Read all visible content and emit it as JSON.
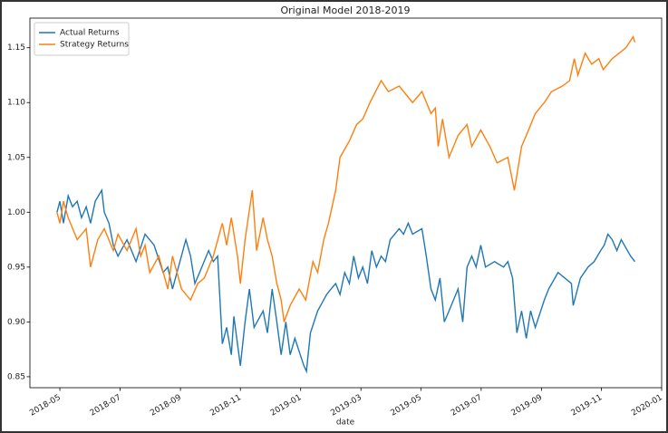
{
  "chart_data": {
    "type": "line",
    "title": "Original Model 2018-2019",
    "x_label": "date",
    "xlim": [
      2018.25,
      2020.0
    ],
    "ylim": [
      0.84,
      1.177
    ],
    "xticks": [
      {
        "value": 2018.333,
        "label": "2018-05"
      },
      {
        "value": 2018.5,
        "label": "2018-07"
      },
      {
        "value": 2018.667,
        "label": "2018-09"
      },
      {
        "value": 2018.833,
        "label": "2018-11"
      },
      {
        "value": 2019.0,
        "label": "2019-01"
      },
      {
        "value": 2019.167,
        "label": "2019-03"
      },
      {
        "value": 2019.333,
        "label": "2019-05"
      },
      {
        "value": 2019.5,
        "label": "2019-07"
      },
      {
        "value": 2019.667,
        "label": "2019-09"
      },
      {
        "value": 2019.833,
        "label": "2019-11"
      },
      {
        "value": 2020.0,
        "label": "2020-01"
      }
    ],
    "yticks": [
      0.85,
      {
        "value": 0.9,
        "label": "0.90"
      },
      0.95,
      {
        "value": 1.0,
        "label": "1.00"
      },
      1.05,
      {
        "value": 1.1,
        "label": "1.10"
      },
      1.15
    ],
    "grid": false,
    "legend": "upper-left",
    "series": [
      {
        "name": "Actual Returns",
        "color": "#1f77b4",
        "x": [
          2018.325,
          2018.333,
          2018.343,
          2018.356,
          2018.368,
          2018.381,
          2018.393,
          2018.406,
          2018.418,
          2018.431,
          2018.449,
          2018.456,
          2018.469,
          2018.481,
          2018.494,
          2018.519,
          2018.544,
          2018.569,
          2018.594,
          2018.619,
          2018.632,
          2018.645,
          2018.682,
          2018.695,
          2018.707,
          2018.72,
          2018.745,
          2018.758,
          2018.77,
          2018.783,
          2018.795,
          2018.808,
          2018.815,
          2018.833,
          2018.846,
          2018.858,
          2018.871,
          2018.896,
          2018.908,
          2018.921,
          2018.934,
          2018.946,
          2018.959,
          2018.971,
          2018.984,
          2019.009,
          2019.016,
          2019.027,
          2019.047,
          2019.072,
          2019.084,
          2019.097,
          2019.109,
          2019.122,
          2019.135,
          2019.147,
          2019.16,
          2019.172,
          2019.185,
          2019.197,
          2019.21,
          2019.223,
          2019.235,
          2019.248,
          2019.273,
          2019.285,
          2019.298,
          2019.31,
          2019.336,
          2019.348,
          2019.361,
          2019.373,
          2019.386,
          2019.398,
          2019.411,
          2019.436,
          2019.449,
          2019.461,
          2019.474,
          2019.486,
          2019.499,
          2019.512,
          2019.537,
          2019.562,
          2019.574,
          2019.587,
          2019.599,
          2019.612,
          2019.625,
          2019.637,
          2019.65,
          2019.675,
          2019.687,
          2019.713,
          2019.75,
          2019.755,
          2019.775,
          2019.796,
          2019.813,
          2019.831,
          2019.841,
          2019.851,
          2019.863,
          2019.876,
          2019.888,
          2019.914,
          2019.926
        ],
        "values": [
          1.0,
          1.01,
          0.99,
          1.015,
          1.005,
          1.01,
          0.995,
          1.005,
          0.99,
          1.01,
          1.02,
          1.0,
          0.99,
          0.97,
          0.96,
          0.975,
          0.955,
          0.98,
          0.97,
          0.945,
          0.95,
          0.93,
          0.975,
          0.96,
          0.935,
          0.945,
          0.965,
          0.955,
          0.96,
          0.88,
          0.895,
          0.87,
          0.905,
          0.86,
          0.9,
          0.93,
          0.895,
          0.91,
          0.89,
          0.93,
          0.9,
          0.87,
          0.9,
          0.87,
          0.885,
          0.86,
          0.855,
          0.89,
          0.91,
          0.925,
          0.93,
          0.935,
          0.925,
          0.945,
          0.935,
          0.96,
          0.94,
          0.95,
          0.935,
          0.965,
          0.95,
          0.96,
          0.955,
          0.975,
          0.985,
          0.98,
          0.99,
          0.98,
          0.985,
          0.96,
          0.93,
          0.92,
          0.94,
          0.9,
          0.91,
          0.93,
          0.9,
          0.95,
          0.96,
          0.95,
          0.97,
          0.95,
          0.955,
          0.95,
          0.955,
          0.94,
          0.89,
          0.91,
          0.885,
          0.91,
          0.895,
          0.92,
          0.93,
          0.945,
          0.935,
          0.915,
          0.94,
          0.95,
          0.955,
          0.965,
          0.97,
          0.98,
          0.975,
          0.965,
          0.975,
          0.96,
          0.955
        ]
      },
      {
        "name": "Strategy Returns",
        "color": "#ff7f0e",
        "x": [
          2018.325,
          2018.333,
          2018.343,
          2018.356,
          2018.381,
          2018.406,
          2018.418,
          2018.438,
          2018.456,
          2018.481,
          2018.494,
          2018.519,
          2018.544,
          2018.557,
          2018.569,
          2018.582,
          2018.607,
          2018.632,
          2018.645,
          2018.67,
          2018.695,
          2018.715,
          2018.733,
          2018.758,
          2018.783,
          2018.795,
          2018.808,
          2018.825,
          2018.833,
          2018.846,
          2018.866,
          2018.878,
          2018.896,
          2018.908,
          2018.921,
          2018.934,
          2018.946,
          2018.954,
          2018.971,
          2018.996,
          2019.014,
          2019.034,
          2019.047,
          2019.064,
          2019.077,
          2019.097,
          2019.109,
          2019.135,
          2019.155,
          2019.172,
          2019.192,
          2019.223,
          2019.243,
          2019.273,
          2019.31,
          2019.336,
          2019.361,
          2019.373,
          2019.381,
          2019.393,
          2019.411,
          2019.436,
          2019.461,
          2019.474,
          2019.499,
          2019.524,
          2019.544,
          2019.574,
          2019.592,
          2019.612,
          2019.625,
          2019.65,
          2019.675,
          2019.695,
          2019.725,
          2019.745,
          2019.758,
          2019.768,
          2019.788,
          2019.806,
          2019.826,
          2019.838,
          2019.863,
          2019.901,
          2019.921,
          2019.926
        ],
        "values": [
          1.0,
          0.99,
          1.01,
          0.995,
          0.975,
          0.985,
          0.95,
          0.975,
          0.985,
          0.965,
          0.98,
          0.965,
          0.985,
          0.96,
          0.97,
          0.945,
          0.96,
          0.93,
          0.96,
          0.93,
          0.92,
          0.935,
          0.94,
          0.96,
          0.99,
          0.97,
          0.995,
          0.96,
          0.935,
          0.975,
          1.02,
          0.965,
          0.995,
          0.975,
          0.96,
          0.935,
          0.92,
          0.9,
          0.915,
          0.93,
          0.92,
          0.955,
          0.945,
          0.975,
          0.99,
          1.02,
          1.05,
          1.065,
          1.08,
          1.085,
          1.1,
          1.12,
          1.11,
          1.115,
          1.1,
          1.11,
          1.09,
          1.095,
          1.06,
          1.085,
          1.05,
          1.07,
          1.08,
          1.06,
          1.075,
          1.06,
          1.045,
          1.05,
          1.02,
          1.06,
          1.07,
          1.09,
          1.1,
          1.11,
          1.115,
          1.12,
          1.14,
          1.125,
          1.145,
          1.135,
          1.14,
          1.13,
          1.14,
          1.15,
          1.16,
          1.155
        ]
      }
    ]
  }
}
